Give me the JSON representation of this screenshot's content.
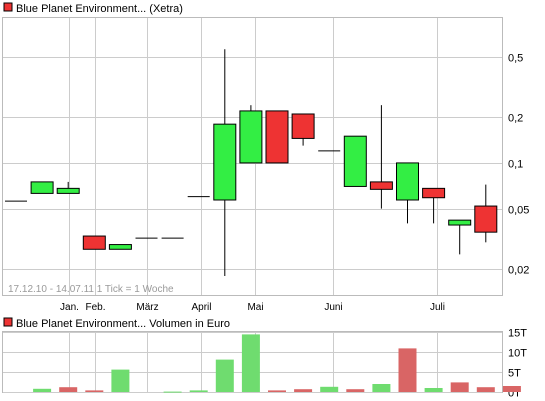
{
  "colors": {
    "up": "#33ee44",
    "down": "#ee3333",
    "vol_up": "#6fdc6f",
    "vol_down": "#d96565",
    "grid": "#cccccc",
    "legend_swatch": "#ee3333"
  },
  "chart_data": [
    {
      "type": "candlestick",
      "title": "Blue Planet Environment... (Xetra)",
      "info": "17.12.10 - 14.07.11   1 Tick = 1 Woche",
      "y_scale": "log",
      "ylim": [
        0.0135,
        0.9
      ],
      "yticks": [
        {
          "label": "0,5",
          "value": 0.5
        },
        {
          "label": "0,2",
          "value": 0.2
        },
        {
          "label": "0,1",
          "value": 0.1
        },
        {
          "label": "0,05",
          "value": 0.05
        },
        {
          "label": "0,02",
          "value": 0.02
        }
      ],
      "xticks": [
        "Jan.",
        "Feb.",
        "März",
        "April",
        "Mai",
        "Juni",
        "Juli"
      ],
      "grid": true,
      "candles": [
        {
          "week": 0,
          "open": 0.056,
          "high": 0.056,
          "low": 0.056,
          "close": 0.056
        },
        {
          "week": 1,
          "open": 0.063,
          "high": 0.075,
          "low": 0.063,
          "close": 0.075
        },
        {
          "week": 2,
          "open": 0.063,
          "high": 0.075,
          "low": 0.063,
          "close": 0.068
        },
        {
          "week": 3,
          "open": 0.033,
          "high": 0.033,
          "low": 0.027,
          "close": 0.027
        },
        {
          "week": 4,
          "open": 0.027,
          "high": 0.029,
          "low": 0.027,
          "close": 0.029
        },
        {
          "week": 5,
          "open": 0.032,
          "high": 0.032,
          "low": 0.032,
          "close": 0.032
        },
        {
          "week": 6,
          "open": 0.032,
          "high": 0.032,
          "low": 0.032,
          "close": 0.032
        },
        {
          "week": 7,
          "open": 0.06,
          "high": 0.06,
          "low": 0.06,
          "close": 0.06
        },
        {
          "week": 8,
          "open": 0.057,
          "high": 0.56,
          "low": 0.018,
          "close": 0.18
        },
        {
          "week": 9,
          "open": 0.1,
          "high": 0.24,
          "low": 0.1,
          "close": 0.22
        },
        {
          "week": 10,
          "open": 0.22,
          "high": 0.22,
          "low": 0.1,
          "close": 0.1
        },
        {
          "week": 11,
          "open": 0.21,
          "high": 0.21,
          "low": 0.13,
          "close": 0.145
        },
        {
          "week": 12,
          "open": 0.12,
          "high": 0.12,
          "low": 0.12,
          "close": 0.12
        },
        {
          "week": 13,
          "open": 0.07,
          "high": 0.15,
          "low": 0.07,
          "close": 0.15
        },
        {
          "week": 14,
          "open": 0.075,
          "high": 0.24,
          "low": 0.05,
          "close": 0.067
        },
        {
          "week": 15,
          "open": 0.057,
          "high": 0.1,
          "low": 0.04,
          "close": 0.1
        },
        {
          "week": 16,
          "open": 0.068,
          "high": 0.068,
          "low": 0.04,
          "close": 0.059
        },
        {
          "week": 17,
          "open": 0.039,
          "high": 0.042,
          "low": 0.025,
          "close": 0.042
        },
        {
          "week": 18,
          "open": 0.052,
          "high": 0.072,
          "low": 0.03,
          "close": 0.035
        }
      ]
    },
    {
      "type": "bar",
      "title": "Blue Planet Environment... Volumen in Euro",
      "ylim": [
        0,
        15000
      ],
      "yticks": [
        {
          "label": "15T",
          "value": 15000
        },
        {
          "label": "10T",
          "value": 10000
        },
        {
          "label": "5T",
          "value": 5000
        },
        {
          "label": "0T",
          "value": 0
        }
      ],
      "bars": [
        {
          "week": 1,
          "value": 800,
          "direction": "up"
        },
        {
          "week": 2,
          "value": 1200,
          "direction": "down"
        },
        {
          "week": 3,
          "value": 400,
          "direction": "down"
        },
        {
          "week": 4,
          "value": 5600,
          "direction": "up"
        },
        {
          "week": 6,
          "value": 100,
          "direction": "up"
        },
        {
          "week": 7,
          "value": 400,
          "direction": "up"
        },
        {
          "week": 8,
          "value": 8100,
          "direction": "up"
        },
        {
          "week": 9,
          "value": 14400,
          "direction": "up"
        },
        {
          "week": 10,
          "value": 400,
          "direction": "down"
        },
        {
          "week": 11,
          "value": 700,
          "direction": "down"
        },
        {
          "week": 12,
          "value": 1300,
          "direction": "up"
        },
        {
          "week": 13,
          "value": 700,
          "direction": "down"
        },
        {
          "week": 14,
          "value": 2000,
          "direction": "up"
        },
        {
          "week": 15,
          "value": 10900,
          "direction": "down"
        },
        {
          "week": 16,
          "value": 1000,
          "direction": "up"
        },
        {
          "week": 17,
          "value": 2400,
          "direction": "down"
        },
        {
          "week": 18,
          "value": 1200,
          "direction": "down"
        },
        {
          "week": 19,
          "value": 1500,
          "direction": "down"
        }
      ]
    }
  ]
}
